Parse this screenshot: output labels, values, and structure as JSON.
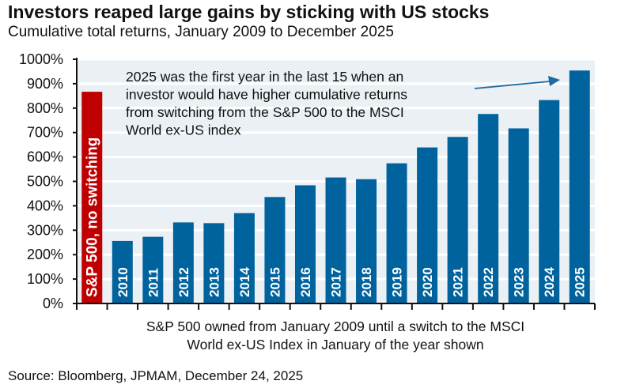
{
  "title": "Investors reaped large gains by sticking with US stocks",
  "subtitle": "Cumulative total returns, January 2009 to December 2025",
  "source": "Source: Bloomberg, JPMAM, December 24, 2025",
  "chart_data": {
    "type": "bar",
    "categories": [
      "S&P 500, no switching",
      "2010",
      "2011",
      "2012",
      "2013",
      "2014",
      "2015",
      "2016",
      "2017",
      "2018",
      "2019",
      "2020",
      "2021",
      "2022",
      "2023",
      "2024",
      "2025"
    ],
    "values": [
      867,
      256,
      273,
      332,
      329,
      370,
      436,
      484,
      516,
      509,
      574,
      639,
      682,
      776,
      717,
      833,
      954
    ],
    "bar_colors": [
      "#c00000",
      "#00639e",
      "#00639e",
      "#00639e",
      "#00639e",
      "#00639e",
      "#00639e",
      "#00639e",
      "#00639e",
      "#00639e",
      "#00639e",
      "#00639e",
      "#00639e",
      "#00639e",
      "#00639e",
      "#00639e",
      "#00639e"
    ],
    "ylim": [
      0,
      1000
    ],
    "yticks": [
      "0%",
      "100%",
      "200%",
      "300%",
      "400%",
      "500%",
      "600%",
      "700%",
      "800%",
      "900%",
      "1000%"
    ],
    "ylabel": "",
    "xlabel_lines": [
      "S&P 500 owned from January 2009 until a switch to the MSCI",
      "World ex-US Index in January of the year shown"
    ],
    "annotation_lines": [
      "2025 was the first year in the last 15 when an",
      "investor would have higher cumulative returns",
      "from switching from the S&P 500 to the MSCI",
      "World ex-US index"
    ],
    "grid": true,
    "plot_background": "#eaf0f4"
  }
}
